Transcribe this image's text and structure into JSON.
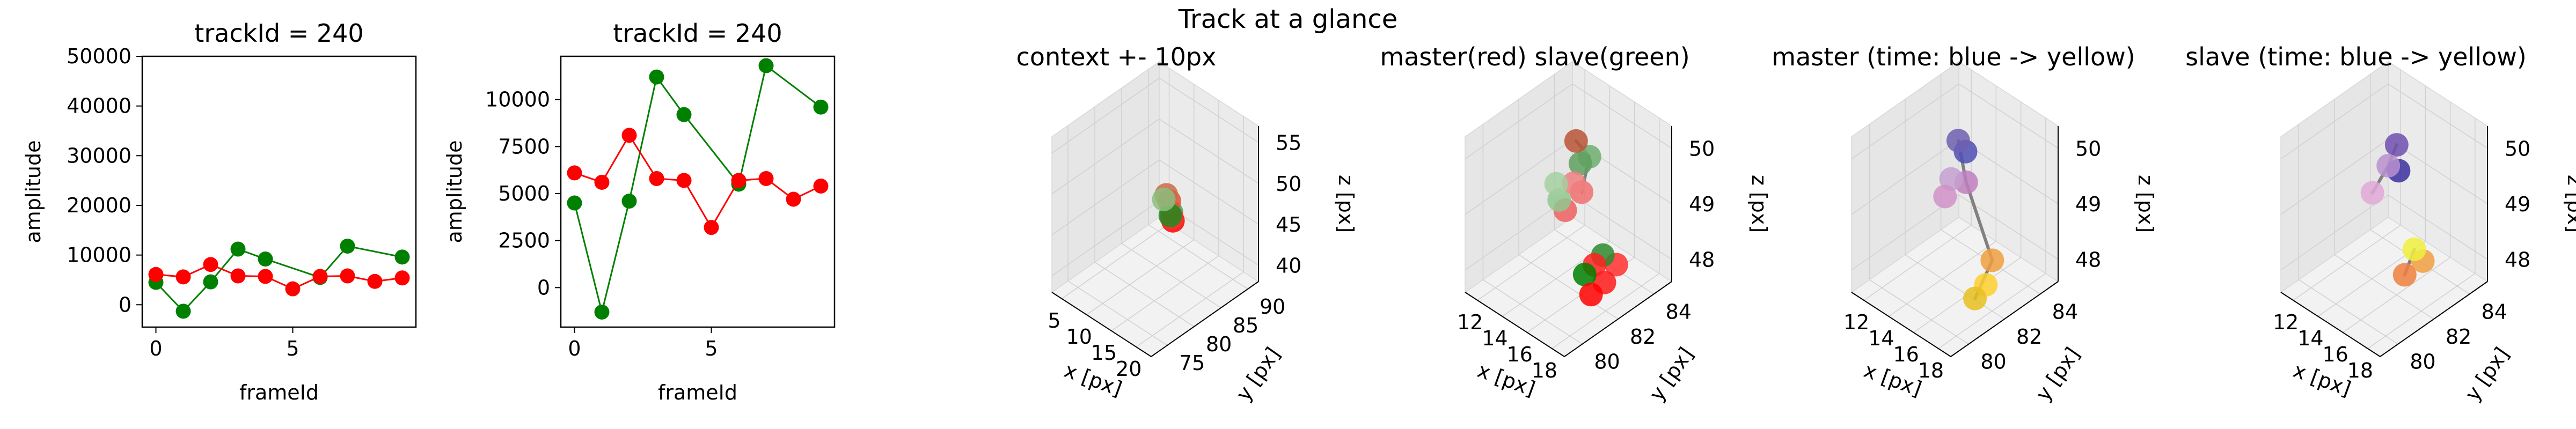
{
  "figure": {
    "suptitle": "Track at a glance"
  },
  "chart_data": [
    {
      "type": "line",
      "title": "trackId = 240",
      "xlabel": "frameId",
      "ylabel": "amplitude",
      "xlim": [
        -0.5,
        9.5
      ],
      "ylim": [
        -4500,
        50000
      ],
      "xticks": [
        0,
        5
      ],
      "yticks": [
        0,
        10000,
        20000,
        30000,
        40000,
        50000
      ],
      "x": [
        0,
        1,
        2,
        3,
        4,
        5,
        6,
        7,
        8,
        9
      ],
      "series": [
        {
          "color": "#008000",
          "x": [
            0,
            1,
            2,
            3,
            4,
            6,
            7,
            9
          ],
          "values": [
            4500,
            -1300,
            4600,
            11200,
            9200,
            5500,
            11800,
            9600
          ]
        },
        {
          "color": "#ff0000",
          "x": [
            0,
            1,
            2,
            3,
            4,
            5,
            6,
            7,
            8,
            9
          ],
          "values": [
            6100,
            5600,
            8100,
            5800,
            5700,
            3200,
            5700,
            5800,
            4700,
            5400
          ]
        }
      ]
    },
    {
      "type": "line",
      "title": "trackId = 240",
      "xlabel": "frameId",
      "ylabel": "amplitude",
      "xlim": [
        -0.5,
        9.5
      ],
      "ylim": [
        -2100,
        12300
      ],
      "xticks": [
        0,
        5
      ],
      "yticks": [
        0,
        2500,
        5000,
        7500,
        10000
      ],
      "x": [
        0,
        1,
        2,
        3,
        4,
        5,
        6,
        7,
        8,
        9
      ],
      "series": [
        {
          "color": "#008000",
          "x": [
            0,
            1,
            2,
            3,
            4,
            6,
            7,
            9
          ],
          "values": [
            4500,
            -1300,
            4600,
            11200,
            9200,
            5500,
            11800,
            9600
          ]
        },
        {
          "color": "#ff0000",
          "x": [
            0,
            1,
            2,
            3,
            4,
            5,
            6,
            7,
            8,
            9
          ],
          "values": [
            6100,
            5600,
            8100,
            5800,
            5700,
            3200,
            5700,
            5800,
            4700,
            5400
          ]
        }
      ]
    },
    {
      "type": "scatter",
      "title": "context +- 10px",
      "xlabel": "x [px]",
      "ylabel": "y [px]",
      "zlabel": "z [px]",
      "xticks": [
        5,
        10,
        15,
        20
      ],
      "yticks": [
        75,
        80,
        85,
        90
      ],
      "zticks": [
        40,
        45,
        50,
        55
      ],
      "points": [
        {
          "x": 14.6,
          "y": 82.6,
          "z": 49.6,
          "color": "#cc6a4a"
        },
        {
          "x": 14.4,
          "y": 82.3,
          "z": 49.1,
          "color": "#8bbf7e"
        },
        {
          "x": 15.0,
          "y": 82.8,
          "z": 48.9,
          "color": "#e05030"
        },
        {
          "x": 15.2,
          "y": 83.0,
          "z": 47.5,
          "color": "#4f9f4f"
        },
        {
          "x": 15.4,
          "y": 82.9,
          "z": 47.0,
          "color": "#ff3030"
        },
        {
          "x": 15.5,
          "y": 83.0,
          "z": 46.6,
          "color": "#ff0000"
        },
        {
          "x": 15.3,
          "y": 82.7,
          "z": 47.3,
          "color": "#1f8c1f"
        }
      ],
      "segments": [
        [
          [
            14.6,
            82.6,
            49.6
          ],
          [
            15.3,
            82.9,
            47.1
          ]
        ]
      ]
    },
    {
      "type": "scatter",
      "title": "master(red) slave(green)",
      "xlabel": "x [px]",
      "ylabel": "y [px]",
      "zlabel": "z [px]",
      "xticks": [
        12,
        14,
        16,
        18
      ],
      "yticks": [
        80,
        82,
        84
      ],
      "zticks": [
        48,
        49,
        50
      ],
      "points": [
        {
          "x": 14.9,
          "y": 82.5,
          "z": 50.1,
          "color": "#b85536"
        },
        {
          "x": 15.1,
          "y": 82.6,
          "z": 49.7,
          "color": "#5fa05f"
        },
        {
          "x": 15.4,
          "y": 82.9,
          "z": 49.8,
          "color": "#6fae6f"
        },
        {
          "x": 14.3,
          "y": 81.8,
          "z": 49.4,
          "color": "#a5cfa0"
        },
        {
          "x": 15.0,
          "y": 82.3,
          "z": 49.4,
          "color": "#f08080"
        },
        {
          "x": 14.4,
          "y": 81.9,
          "z": 49.1,
          "color": "#8fc88f"
        },
        {
          "x": 15.2,
          "y": 82.6,
          "z": 49.2,
          "color": "#f07070"
        },
        {
          "x": 14.6,
          "y": 82.1,
          "z": 48.9,
          "color": "#f06060"
        },
        {
          "x": 17.2,
          "y": 82.4,
          "z": 48.4,
          "color": "#2e8b2e"
        },
        {
          "x": 18.0,
          "y": 82.6,
          "z": 48.3,
          "color": "#ff3030"
        },
        {
          "x": 16.6,
          "y": 81.8,
          "z": 48.1,
          "color": "#008000"
        },
        {
          "x": 17.9,
          "y": 82.0,
          "z": 48.1,
          "color": "#ff1a1a"
        },
        {
          "x": 17.4,
          "y": 81.6,
          "z": 47.9,
          "color": "#ff0000"
        },
        {
          "x": 17.1,
          "y": 82.0,
          "z": 48.3,
          "color": "#ff2020"
        }
      ],
      "segments": [
        [
          [
            14.9,
            82.5,
            50.1
          ],
          [
            15.4,
            82.9,
            49.8
          ]
        ],
        [
          [
            15.2,
            82.6,
            49.2
          ],
          [
            15.4,
            82.9,
            49.8
          ]
        ]
      ]
    },
    {
      "type": "scatter",
      "title": "master (time: blue -> yellow)",
      "xlabel": "x [px]",
      "ylabel": "y [px]",
      "zlabel": "z [px]",
      "xticks": [
        12,
        14,
        16,
        18
      ],
      "yticks": [
        80,
        82,
        84
      ],
      "zticks": [
        48,
        49,
        50
      ],
      "points": [
        {
          "x": 14.7,
          "y": 82.4,
          "z": 50.1,
          "color": "#6f5fb0"
        },
        {
          "x": 15.0,
          "y": 82.6,
          "z": 49.9,
          "color": "#4f4fb5"
        },
        {
          "x": 14.7,
          "y": 82.0,
          "z": 49.5,
          "color": "#c4a0d0"
        },
        {
          "x": 15.2,
          "y": 82.5,
          "z": 49.4,
          "color": "#c080c0"
        },
        {
          "x": 14.5,
          "y": 81.8,
          "z": 49.2,
          "color": "#d090c8"
        },
        {
          "x": 17.3,
          "y": 82.5,
          "z": 48.3,
          "color": "#f0a040"
        },
        {
          "x": 17.5,
          "y": 82.0,
          "z": 48.0,
          "color": "#ffd030"
        },
        {
          "x": 17.2,
          "y": 81.6,
          "z": 47.8,
          "color": "#e8c020"
        }
      ],
      "segments": [
        [
          [
            14.7,
            82.4,
            50.1
          ],
          [
            15.2,
            82.5,
            49.4
          ]
        ],
        [
          [
            15.2,
            82.5,
            49.4
          ],
          [
            17.3,
            82.5,
            48.3
          ]
        ],
        [
          [
            17.3,
            82.5,
            48.3
          ],
          [
            17.2,
            81.6,
            47.8
          ]
        ]
      ]
    },
    {
      "type": "scatter",
      "title": "slave (time: blue -> yellow)",
      "xlabel": "x [px]",
      "ylabel": "y [px]",
      "zlabel": "z [px]",
      "xticks": [
        12,
        14,
        16,
        18
      ],
      "yticks": [
        80,
        82,
        84
      ],
      "zticks": [
        48,
        49,
        50
      ],
      "points": [
        {
          "x": 15.0,
          "y": 82.7,
          "z": 50.0,
          "color": "#7050b0"
        },
        {
          "x": 14.9,
          "y": 82.3,
          "z": 49.7,
          "color": "#b890d0"
        },
        {
          "x": 15.3,
          "y": 82.6,
          "z": 49.6,
          "color": "#3b2fa0"
        },
        {
          "x": 14.2,
          "y": 81.9,
          "z": 49.2,
          "color": "#e0a8d8"
        },
        {
          "x": 17.0,
          "y": 82.3,
          "z": 48.5,
          "color": "#f0f040"
        },
        {
          "x": 17.4,
          "y": 82.5,
          "z": 48.3,
          "color": "#f0a040"
        },
        {
          "x": 16.8,
          "y": 81.9,
          "z": 48.1,
          "color": "#f08040"
        }
      ],
      "segments": [
        [
          [
            15.0,
            82.7,
            50.0
          ],
          [
            14.9,
            82.3,
            49.7
          ]
        ],
        [
          [
            14.9,
            82.3,
            49.7
          ],
          [
            14.2,
            81.9,
            49.2
          ]
        ],
        [
          [
            17.0,
            82.3,
            48.5
          ],
          [
            16.8,
            81.9,
            48.1
          ]
        ]
      ]
    }
  ]
}
